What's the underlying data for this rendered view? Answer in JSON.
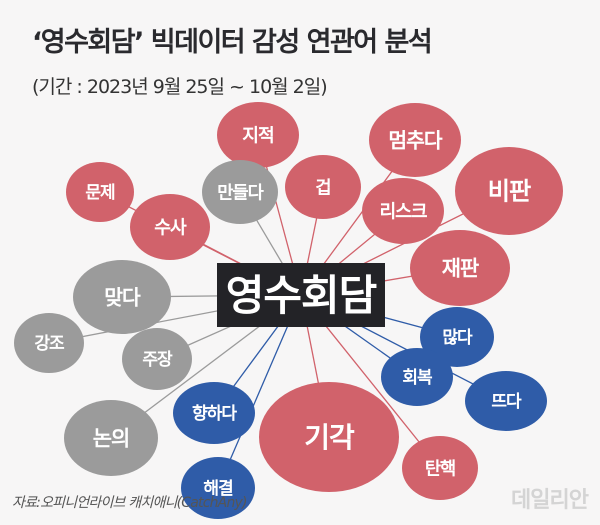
{
  "title": "‘영수회담’ 빅데이터 감성 연관어 분석",
  "subtitle": "(기간 : 2023년 9월 25일 ~ 10월 2일)",
  "center_keyword": "영수회담",
  "source": "자료:오피니언라이브 캐치애니(CatchAny)",
  "logo": "데일리안",
  "colors": {
    "negative": "#d1626b",
    "neutral": "#9b9b9b",
    "positive": "#2f5ca8",
    "center": "#232327"
  },
  "bubbles": [
    {
      "label": "지적",
      "sentiment": "negative"
    },
    {
      "label": "멈추다",
      "sentiment": "negative"
    },
    {
      "label": "문제",
      "sentiment": "negative"
    },
    {
      "label": "만들다",
      "sentiment": "neutral"
    },
    {
      "label": "겁",
      "sentiment": "negative"
    },
    {
      "label": "리스크",
      "sentiment": "negative"
    },
    {
      "label": "비판",
      "sentiment": "negative"
    },
    {
      "label": "수사",
      "sentiment": "negative"
    },
    {
      "label": "재판",
      "sentiment": "negative"
    },
    {
      "label": "맞다",
      "sentiment": "neutral"
    },
    {
      "label": "강조",
      "sentiment": "neutral"
    },
    {
      "label": "주장",
      "sentiment": "neutral"
    },
    {
      "label": "많다",
      "sentiment": "positive"
    },
    {
      "label": "회복",
      "sentiment": "positive"
    },
    {
      "label": "뜨다",
      "sentiment": "positive"
    },
    {
      "label": "향하다",
      "sentiment": "positive"
    },
    {
      "label": "논의",
      "sentiment": "neutral"
    },
    {
      "label": "기각",
      "sentiment": "negative"
    },
    {
      "label": "탄핵",
      "sentiment": "negative"
    },
    {
      "label": "해결",
      "sentiment": "positive"
    }
  ]
}
